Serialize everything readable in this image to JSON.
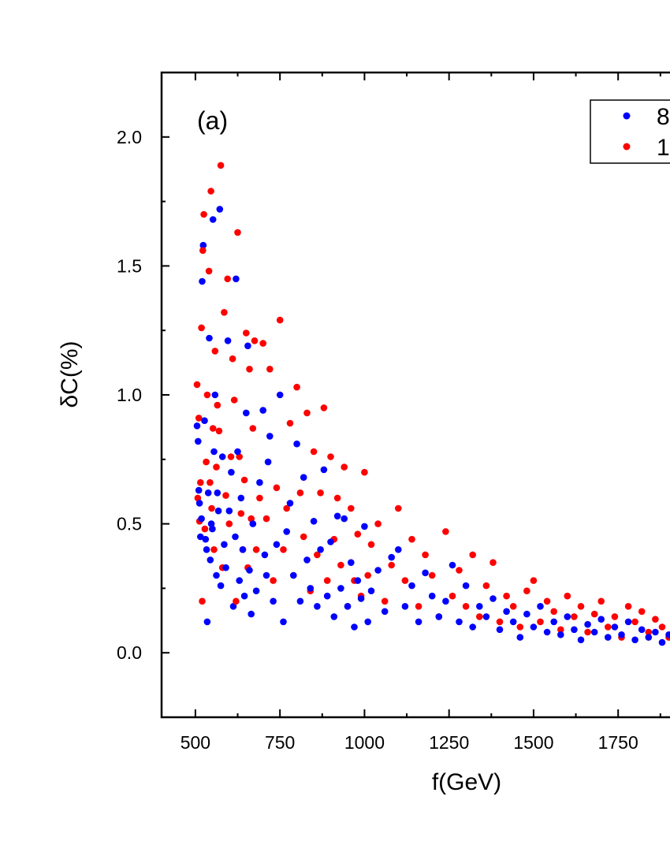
{
  "chart_data": {
    "type": "scatter",
    "panel_label": "(a)",
    "xlabel": "f(GeV)",
    "ylabel": "δC(%)",
    "xlim": [
      400,
      1950
    ],
    "ylim": [
      -0.25,
      2.25
    ],
    "x_ticks": [
      500,
      750,
      1000,
      1250,
      1500,
      1750
    ],
    "x_tick_labels": [
      "500",
      "750",
      "1000",
      "1250",
      "1500",
      "1750"
    ],
    "y_ticks": [
      0.0,
      0.5,
      1.0,
      1.5,
      2.0
    ],
    "y_tick_labels": [
      "0.0",
      "0.5",
      "1.0",
      "1.5",
      "2.0"
    ],
    "legend": {
      "position": "top-right",
      "entries": [
        "8",
        "1"
      ]
    },
    "series": [
      {
        "name": "8",
        "color": "#0000ff",
        "points": [
          [
            505,
            0.88
          ],
          [
            508,
            0.82
          ],
          [
            510,
            0.63
          ],
          [
            512,
            0.58
          ],
          [
            515,
            0.45
          ],
          [
            518,
            0.52
          ],
          [
            520,
            1.44
          ],
          [
            523,
            1.58
          ],
          [
            527,
            0.9
          ],
          [
            530,
            0.44
          ],
          [
            533,
            0.4
          ],
          [
            535,
            0.12
          ],
          [
            538,
            0.62
          ],
          [
            541,
            1.22
          ],
          [
            544,
            0.36
          ],
          [
            547,
            0.5
          ],
          [
            550,
            0.48
          ],
          [
            552,
            1.68
          ],
          [
            555,
            0.78
          ],
          [
            558,
            1.0
          ],
          [
            562,
            0.3
          ],
          [
            565,
            0.62
          ],
          [
            568,
            0.55
          ],
          [
            572,
            1.72
          ],
          [
            575,
            0.26
          ],
          [
            580,
            0.76
          ],
          [
            585,
            0.42
          ],
          [
            590,
            0.33
          ],
          [
            596,
            1.21
          ],
          [
            600,
            0.55
          ],
          [
            606,
            0.7
          ],
          [
            612,
            0.18
          ],
          [
            618,
            0.45
          ],
          [
            620,
            1.45
          ],
          [
            625,
            0.78
          ],
          [
            630,
            0.28
          ],
          [
            635,
            0.6
          ],
          [
            640,
            0.4
          ],
          [
            645,
            0.22
          ],
          [
            650,
            0.93
          ],
          [
            655,
            1.19
          ],
          [
            660,
            0.32
          ],
          [
            665,
            0.15
          ],
          [
            670,
            0.5
          ],
          [
            680,
            0.24
          ],
          [
            690,
            0.66
          ],
          [
            700,
            0.94
          ],
          [
            705,
            0.38
          ],
          [
            710,
            0.3
          ],
          [
            715,
            0.74
          ],
          [
            720,
            0.84
          ],
          [
            730,
            0.2
          ],
          [
            740,
            0.42
          ],
          [
            750,
            1.0
          ],
          [
            760,
            0.12
          ],
          [
            770,
            0.47
          ],
          [
            780,
            0.58
          ],
          [
            790,
            0.3
          ],
          [
            800,
            0.81
          ],
          [
            810,
            0.2
          ],
          [
            820,
            0.68
          ],
          [
            830,
            0.36
          ],
          [
            840,
            0.25
          ],
          [
            850,
            0.51
          ],
          [
            860,
            0.18
          ],
          [
            870,
            0.4
          ],
          [
            880,
            0.71
          ],
          [
            890,
            0.22
          ],
          [
            900,
            0.43
          ],
          [
            910,
            0.14
          ],
          [
            920,
            0.53
          ],
          [
            930,
            0.25
          ],
          [
            940,
            0.52
          ],
          [
            950,
            0.18
          ],
          [
            960,
            0.35
          ],
          [
            970,
            0.1
          ],
          [
            980,
            0.28
          ],
          [
            990,
            0.21
          ],
          [
            1000,
            0.49
          ],
          [
            1010,
            0.12
          ],
          [
            1020,
            0.24
          ],
          [
            1040,
            0.32
          ],
          [
            1060,
            0.16
          ],
          [
            1080,
            0.37
          ],
          [
            1100,
            0.4
          ],
          [
            1120,
            0.18
          ],
          [
            1140,
            0.26
          ],
          [
            1160,
            0.12
          ],
          [
            1180,
            0.31
          ],
          [
            1200,
            0.22
          ],
          [
            1220,
            0.14
          ],
          [
            1240,
            0.2
          ],
          [
            1260,
            0.34
          ],
          [
            1280,
            0.12
          ],
          [
            1300,
            0.26
          ],
          [
            1320,
            0.1
          ],
          [
            1340,
            0.18
          ],
          [
            1360,
            0.14
          ],
          [
            1380,
            0.21
          ],
          [
            1400,
            0.09
          ],
          [
            1420,
            0.16
          ],
          [
            1440,
            0.12
          ],
          [
            1460,
            0.06
          ],
          [
            1480,
            0.15
          ],
          [
            1500,
            0.1
          ],
          [
            1520,
            0.18
          ],
          [
            1540,
            0.08
          ],
          [
            1560,
            0.12
          ],
          [
            1580,
            0.07
          ],
          [
            1600,
            0.14
          ],
          [
            1620,
            0.09
          ],
          [
            1640,
            0.05
          ],
          [
            1660,
            0.11
          ],
          [
            1680,
            0.08
          ],
          [
            1700,
            0.13
          ],
          [
            1720,
            0.06
          ],
          [
            1740,
            0.1
          ],
          [
            1760,
            0.07
          ],
          [
            1780,
            0.12
          ],
          [
            1800,
            0.05
          ],
          [
            1820,
            0.09
          ],
          [
            1840,
            0.06
          ],
          [
            1860,
            0.08
          ],
          [
            1880,
            0.04
          ],
          [
            1900,
            0.07
          ]
        ]
      },
      {
        "name": "1",
        "color": "#ff0000",
        "points": [
          [
            505,
            1.04
          ],
          [
            507,
            0.6
          ],
          [
            510,
            0.91
          ],
          [
            512,
            0.51
          ],
          [
            515,
            0.66
          ],
          [
            518,
            1.26
          ],
          [
            520,
            0.2
          ],
          [
            522,
            1.56
          ],
          [
            525,
            1.7
          ],
          [
            528,
            0.48
          ],
          [
            532,
            0.74
          ],
          [
            535,
            1.0
          ],
          [
            540,
            1.48
          ],
          [
            543,
            0.66
          ],
          [
            546,
            1.79
          ],
          [
            548,
            0.56
          ],
          [
            552,
            0.87
          ],
          [
            555,
            0.4
          ],
          [
            558,
            1.17
          ],
          [
            562,
            0.72
          ],
          [
            565,
            0.96
          ],
          [
            570,
            0.86
          ],
          [
            575,
            1.89
          ],
          [
            580,
            0.33
          ],
          [
            585,
            1.32
          ],
          [
            590,
            0.61
          ],
          [
            595,
            1.45
          ],
          [
            600,
            0.5
          ],
          [
            605,
            0.76
          ],
          [
            610,
            1.14
          ],
          [
            615,
            0.98
          ],
          [
            620,
            0.2
          ],
          [
            625,
            1.63
          ],
          [
            630,
            0.76
          ],
          [
            635,
            0.54
          ],
          [
            640,
            0.4
          ],
          [
            645,
            0.67
          ],
          [
            650,
            1.24
          ],
          [
            655,
            0.33
          ],
          [
            660,
            1.1
          ],
          [
            665,
            0.52
          ],
          [
            670,
            0.87
          ],
          [
            675,
            1.21
          ],
          [
            680,
            0.4
          ],
          [
            690,
            0.6
          ],
          [
            700,
            1.2
          ],
          [
            710,
            0.52
          ],
          [
            720,
            1.1
          ],
          [
            730,
            0.28
          ],
          [
            740,
            0.64
          ],
          [
            750,
            1.29
          ],
          [
            760,
            0.4
          ],
          [
            770,
            0.56
          ],
          [
            780,
            0.89
          ],
          [
            790,
            0.3
          ],
          [
            800,
            1.03
          ],
          [
            810,
            0.62
          ],
          [
            820,
            0.45
          ],
          [
            830,
            0.93
          ],
          [
            840,
            0.24
          ],
          [
            850,
            0.78
          ],
          [
            860,
            0.38
          ],
          [
            870,
            0.62
          ],
          [
            880,
            0.95
          ],
          [
            890,
            0.28
          ],
          [
            900,
            0.76
          ],
          [
            910,
            0.44
          ],
          [
            920,
            0.6
          ],
          [
            930,
            0.34
          ],
          [
            940,
            0.72
          ],
          [
            950,
            0.18
          ],
          [
            960,
            0.56
          ],
          [
            970,
            0.28
          ],
          [
            980,
            0.46
          ],
          [
            990,
            0.22
          ],
          [
            1000,
            0.7
          ],
          [
            1010,
            0.3
          ],
          [
            1020,
            0.42
          ],
          [
            1040,
            0.5
          ],
          [
            1060,
            0.2
          ],
          [
            1080,
            0.34
          ],
          [
            1100,
            0.56
          ],
          [
            1120,
            0.28
          ],
          [
            1140,
            0.44
          ],
          [
            1160,
            0.18
          ],
          [
            1180,
            0.38
          ],
          [
            1200,
            0.3
          ],
          [
            1220,
            0.14
          ],
          [
            1240,
            0.47
          ],
          [
            1260,
            0.22
          ],
          [
            1280,
            0.32
          ],
          [
            1300,
            0.18
          ],
          [
            1320,
            0.38
          ],
          [
            1340,
            0.14
          ],
          [
            1360,
            0.26
          ],
          [
            1380,
            0.35
          ],
          [
            1400,
            0.12
          ],
          [
            1420,
            0.22
          ],
          [
            1440,
            0.18
          ],
          [
            1460,
            0.1
          ],
          [
            1480,
            0.24
          ],
          [
            1500,
            0.28
          ],
          [
            1520,
            0.12
          ],
          [
            1540,
            0.2
          ],
          [
            1560,
            0.16
          ],
          [
            1580,
            0.09
          ],
          [
            1600,
            0.22
          ],
          [
            1620,
            0.14
          ],
          [
            1640,
            0.18
          ],
          [
            1660,
            0.08
          ],
          [
            1680,
            0.15
          ],
          [
            1700,
            0.2
          ],
          [
            1720,
            0.1
          ],
          [
            1740,
            0.14
          ],
          [
            1760,
            0.06
          ],
          [
            1780,
            0.18
          ],
          [
            1800,
            0.12
          ],
          [
            1820,
            0.16
          ],
          [
            1840,
            0.08
          ],
          [
            1860,
            0.13
          ],
          [
            1880,
            0.1
          ],
          [
            1900,
            0.06
          ]
        ]
      }
    ]
  }
}
